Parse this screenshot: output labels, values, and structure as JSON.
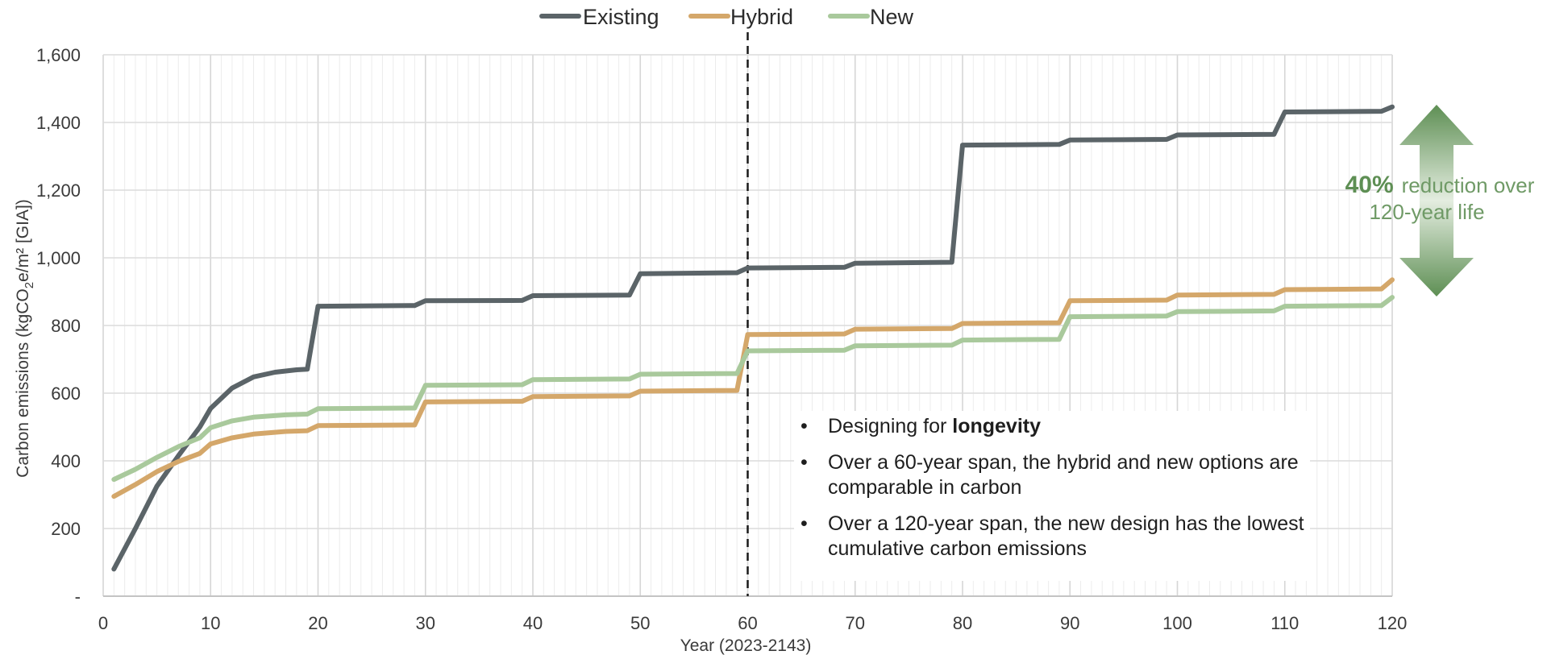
{
  "chart_data": {
    "type": "line",
    "xlabel": "Year (2023-2143)",
    "ylabel": "Carbon emissions (kgCO2e/m² [GIA])",
    "ylabel_parts": [
      "Carbon emissions (kgCO",
      "2",
      "e/m² [GIA])"
    ],
    "xlim": [
      0,
      120
    ],
    "ylim": [
      0,
      1600
    ],
    "x_ticks": [
      "0",
      "10",
      "20",
      "30",
      "40",
      "50",
      "60",
      "70",
      "80",
      "90",
      "100",
      "110",
      "120"
    ],
    "y_ticks": [
      "-",
      "200",
      "400",
      "600",
      "800",
      "1,000",
      "1,200",
      "1,400",
      "1,600"
    ],
    "grid": true,
    "legend_position": "top-center",
    "reference_line_x": 60,
    "series": [
      {
        "name": "Existing",
        "color": "#5b6468",
        "points": [
          [
            1,
            80
          ],
          [
            3,
            200
          ],
          [
            5,
            325
          ],
          [
            7,
            415
          ],
          [
            9,
            500
          ],
          [
            10,
            555
          ],
          [
            12,
            615
          ],
          [
            14,
            648
          ],
          [
            16,
            662
          ],
          [
            18,
            669
          ],
          [
            19,
            671
          ],
          [
            20,
            857
          ],
          [
            29,
            859
          ],
          [
            30,
            873
          ],
          [
            39,
            874
          ],
          [
            40,
            888
          ],
          [
            49,
            890
          ],
          [
            50,
            953
          ],
          [
            59,
            956
          ],
          [
            60,
            970
          ],
          [
            69,
            972
          ],
          [
            70,
            984
          ],
          [
            79,
            987
          ],
          [
            80,
            1333
          ],
          [
            89,
            1335
          ],
          [
            90,
            1348
          ],
          [
            99,
            1350
          ],
          [
            100,
            1363
          ],
          [
            109,
            1365
          ],
          [
            110,
            1431
          ],
          [
            119,
            1433
          ],
          [
            120,
            1446
          ]
        ]
      },
      {
        "name": "Hybrid",
        "color": "#d4a76a",
        "points": [
          [
            1,
            295
          ],
          [
            3,
            330
          ],
          [
            5,
            368
          ],
          [
            7,
            398
          ],
          [
            9,
            422
          ],
          [
            10,
            450
          ],
          [
            12,
            468
          ],
          [
            14,
            479
          ],
          [
            17,
            487
          ],
          [
            19,
            489
          ],
          [
            20,
            504
          ],
          [
            29,
            506
          ],
          [
            30,
            574
          ],
          [
            39,
            576
          ],
          [
            40,
            590
          ],
          [
            49,
            592
          ],
          [
            50,
            606
          ],
          [
            59,
            608
          ],
          [
            60,
            773
          ],
          [
            69,
            775
          ],
          [
            70,
            789
          ],
          [
            79,
            791
          ],
          [
            80,
            806
          ],
          [
            89,
            808
          ],
          [
            90,
            873
          ],
          [
            99,
            875
          ],
          [
            100,
            890
          ],
          [
            109,
            892
          ],
          [
            110,
            906
          ],
          [
            119,
            908
          ],
          [
            120,
            935
          ]
        ]
      },
      {
        "name": "New",
        "color": "#a9c99c",
        "points": [
          [
            1,
            345
          ],
          [
            3,
            375
          ],
          [
            5,
            410
          ],
          [
            7,
            442
          ],
          [
            9,
            468
          ],
          [
            10,
            498
          ],
          [
            12,
            518
          ],
          [
            14,
            529
          ],
          [
            17,
            536
          ],
          [
            19,
            538
          ],
          [
            20,
            554
          ],
          [
            29,
            556
          ],
          [
            30,
            623
          ],
          [
            39,
            625
          ],
          [
            40,
            640
          ],
          [
            49,
            642
          ],
          [
            50,
            656
          ],
          [
            59,
            658
          ],
          [
            60,
            725
          ],
          [
            69,
            727
          ],
          [
            70,
            740
          ],
          [
            79,
            742
          ],
          [
            80,
            757
          ],
          [
            89,
            759
          ],
          [
            90,
            826
          ],
          [
            99,
            828
          ],
          [
            100,
            841
          ],
          [
            109,
            843
          ],
          [
            110,
            857
          ],
          [
            119,
            859
          ],
          [
            120,
            883
          ]
        ]
      }
    ],
    "annotations": {
      "reduction_pct": "40%",
      "reduction_text_1": "reduction over",
      "reduction_text_2": "120-year life"
    },
    "bullets": [
      {
        "text": "Designing for ",
        "bold": "longevity"
      },
      {
        "text": "Over a 60-year span, the hybrid and new options are comparable in carbon"
      },
      {
        "text": "Over a 120-year span, the new design has the lowest cumulative carbon emissions"
      }
    ],
    "colors": {
      "grid": "#dedede",
      "axis": "#c8c8c8",
      "arrow_light": "#dfeadb",
      "arrow_dark": "#5e8f54"
    }
  }
}
